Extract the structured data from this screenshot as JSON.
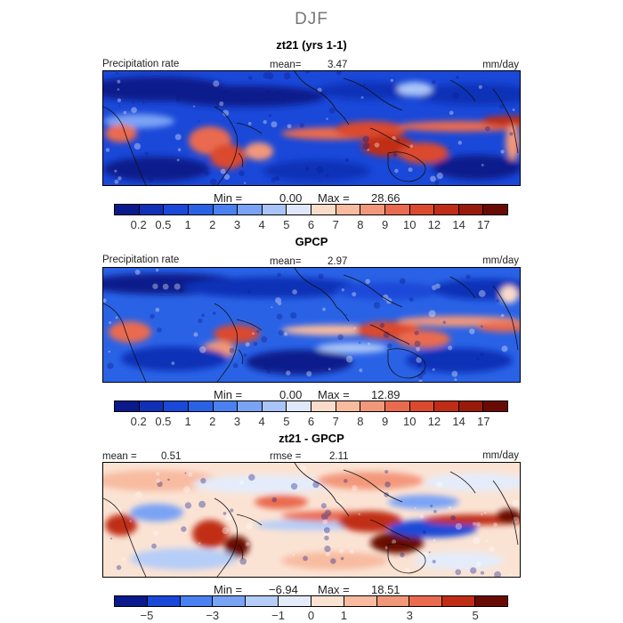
{
  "title": "DJF",
  "panels": [
    {
      "title": "zt21 (yrs 1-1)",
      "left_label": "Precipitation rate",
      "center_label": "mean=",
      "center_value": "3.47",
      "right_label": "mm/day",
      "min_label": "Min =",
      "min_value": "0.00",
      "max_label": "Max =",
      "max_value": "28.66",
      "ticks": [
        "0.2",
        "0.5",
        "1",
        "2",
        "3",
        "4",
        "5",
        "6",
        "7",
        "8",
        "9",
        "10",
        "12",
        "14",
        "17"
      ]
    },
    {
      "title": "GPCP",
      "left_label": "Precipitation rate",
      "center_label": "mean=",
      "center_value": "2.97",
      "right_label": "mm/day",
      "min_label": "Min =",
      "min_value": "0.00",
      "max_label": "Max =",
      "max_value": "12.89",
      "ticks": [
        "0.2",
        "0.5",
        "1",
        "2",
        "3",
        "4",
        "5",
        "6",
        "7",
        "8",
        "9",
        "10",
        "12",
        "14",
        "17"
      ]
    },
    {
      "title": "zt21 - GPCP",
      "left_label": "mean =",
      "left_value": "0.51",
      "center_label": "rmse =",
      "center_value": "2.11",
      "right_label": "mm/day",
      "min_label": "Min =",
      "min_value": "−6.94",
      "max_label": "Max =",
      "max_value": "18.51",
      "ticks": [
        "−5",
        "−3",
        "−1",
        "0",
        "1",
        "3",
        "5"
      ]
    }
  ],
  "colors": {
    "abs_scale": [
      "#0a1a8c",
      "#1030b8",
      "#1a48d8",
      "#2a62e6",
      "#4a80f0",
      "#7aa3f5",
      "#a9c4f8",
      "#dfe8fb",
      "#fbdccb",
      "#f8bba0",
      "#f3977a",
      "#ea6a4f",
      "#db4a2f",
      "#c02d17",
      "#9a1a0a",
      "#6a0a04"
    ],
    "diff_scale": [
      "#0a1a8c",
      "#1a48d8",
      "#4a80f0",
      "#7aa3f5",
      "#b6cdf8",
      "#e4ecfb",
      "#fbe3d4",
      "#f8bba0",
      "#f3977a",
      "#ea6a4f",
      "#c02d17",
      "#6a0a04"
    ]
  }
}
